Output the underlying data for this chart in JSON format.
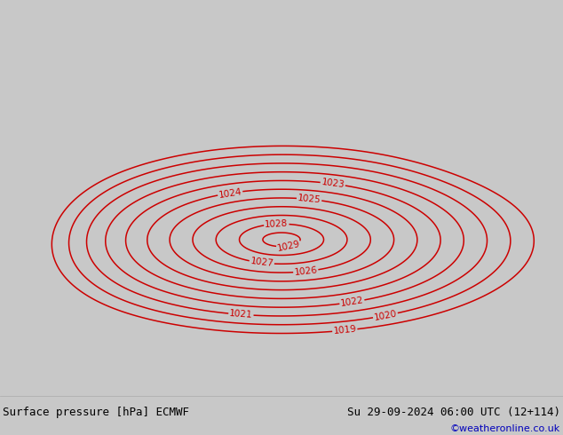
{
  "title_left": "Surface pressure [hPa] ECMWF",
  "title_right": "Su 29-09-2024 06:00 UTC (12+114)",
  "watermark": "©weatheronline.co.uk",
  "land_color": "#aee09a",
  "sea_color": "#c8c8c8",
  "border_color": "#888888",
  "contour_color": "#cc0000",
  "contour_linewidth": 1.1,
  "label_fontsize": 7.5,
  "footer_fontsize": 9,
  "watermark_fontsize": 8,
  "footer_bg": "#ffffff",
  "fig_bg": "#c8c8c8",
  "lon_min": -11,
  "lon_max": 25,
  "lat_min": 44,
  "lat_max": 63,
  "pressure_levels": [
    1019,
    1020,
    1021,
    1022,
    1023,
    1024,
    1025,
    1026,
    1027,
    1028,
    1029
  ]
}
